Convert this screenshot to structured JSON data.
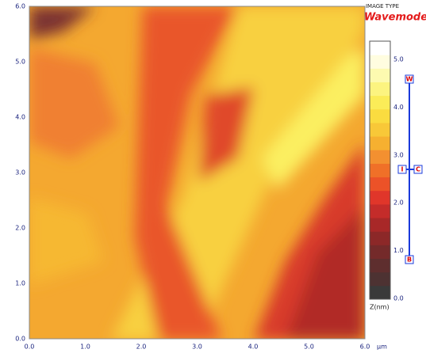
{
  "header": {
    "caption": "IMAGE TYPE",
    "mode": "Wavemode"
  },
  "x_axis": {
    "ticks": [
      "0.0",
      "1.0",
      "2.0",
      "3.0",
      "4.0",
      "5.0",
      "6.0"
    ],
    "unit": "μm"
  },
  "y_axis": {
    "ticks": [
      "0.0",
      "1.0",
      "2.0",
      "3.0",
      "4.0",
      "5.0",
      "6.0"
    ]
  },
  "colorbar": {
    "ticks": [
      "0.0",
      "1.0",
      "2.0",
      "3.0",
      "4.0",
      "5.0"
    ],
    "label": "Z(nm)"
  },
  "slider": {
    "top": "W",
    "left": "I",
    "right": "C",
    "bottom": "B"
  }
}
